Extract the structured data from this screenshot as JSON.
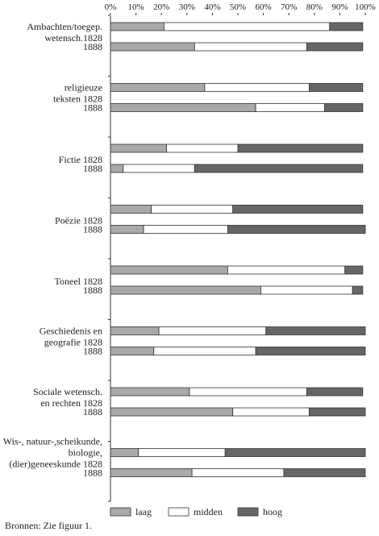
{
  "chart_data": {
    "type": "bar",
    "orientation": "horizontal",
    "stacked": true,
    "title": "",
    "xlabel": "",
    "ylabel": "",
    "xlim": [
      0,
      100
    ],
    "x_ticks": [
      "0%",
      "10%",
      "20%",
      "30%",
      "40%",
      "50%",
      "60%",
      "70%",
      "80%",
      "90%",
      "100%"
    ],
    "grid": false,
    "legend_position": "bottom",
    "series": [
      {
        "name": "laag",
        "color": "#a9a9a9"
      },
      {
        "name": "midden",
        "color": "#ffffff"
      },
      {
        "name": "hoog",
        "color": "#666666"
      }
    ],
    "groups": [
      {
        "label_lines": [
          "Ambachten/toegep.",
          "wetensch.1828"
        ],
        "bars": [
          {
            "year_label": "",
            "values": [
              21,
              65,
              13
            ]
          },
          {
            "year_label": "1888",
            "values": [
              33,
              44,
              22
            ]
          }
        ]
      },
      {
        "label_lines": [
          "religieuze",
          "teksten 1828"
        ],
        "bars": [
          {
            "year_label": "",
            "values": [
              37,
              41,
              21
            ]
          },
          {
            "year_label": "1888",
            "values": [
              57,
              27,
              15
            ]
          }
        ]
      },
      {
        "label_lines": [
          "Fictie 1828"
        ],
        "bars": [
          {
            "year_label": "",
            "values": [
              22,
              28,
              49
            ]
          },
          {
            "year_label": "1888",
            "values": [
              5,
              28,
              66
            ]
          }
        ]
      },
      {
        "label_lines": [
          "Poëzie 1828"
        ],
        "bars": [
          {
            "year_label": "",
            "values": [
              16,
              32,
              51
            ]
          },
          {
            "year_label": "1888",
            "values": [
              13,
              33,
              54
            ]
          }
        ]
      },
      {
        "label_lines": [
          "Toneel 1828"
        ],
        "bars": [
          {
            "year_label": "",
            "values": [
              46,
              46,
              7
            ]
          },
          {
            "year_label": "1888",
            "values": [
              59,
              36,
              4
            ]
          }
        ]
      },
      {
        "label_lines": [
          "Geschiedenis en",
          "geografie 1828"
        ],
        "bars": [
          {
            "year_label": "",
            "values": [
              19,
              42,
              39
            ]
          },
          {
            "year_label": "1888",
            "values": [
              17,
              40,
              43
            ]
          }
        ]
      },
      {
        "label_lines": [
          "Sociale wetensch.",
          "en rechten 1828"
        ],
        "bars": [
          {
            "year_label": "",
            "values": [
              31,
              46,
              22
            ]
          },
          {
            "year_label": "1888",
            "values": [
              48,
              30,
              22
            ]
          }
        ]
      },
      {
        "label_lines": [
          "Wis-, natuur-,scheikunde,",
          "biologie,",
          "(dier)geneeskunde 1828"
        ],
        "bars": [
          {
            "year_label": "",
            "values": [
              11,
              34,
              55
            ]
          },
          {
            "year_label": "1888",
            "values": [
              32,
              36,
              32
            ]
          }
        ]
      }
    ]
  },
  "source_note": "Bronnen: Zie figuur 1."
}
